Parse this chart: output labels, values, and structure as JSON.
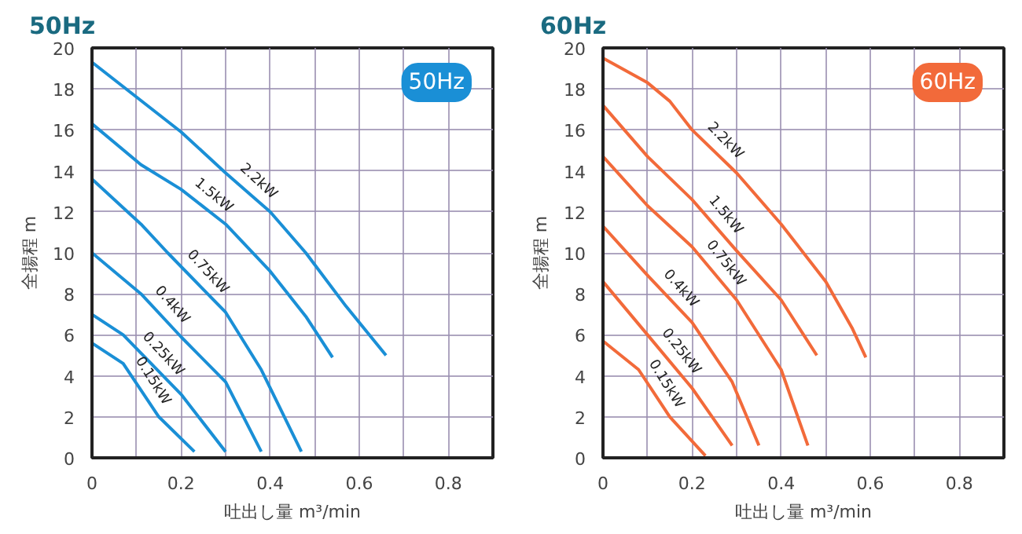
{
  "chart_data": [
    {
      "type": "line",
      "title": "50Hz",
      "xlabel": "吐出し量 m³/min",
      "ylabel": "全揚程 m",
      "annotations": [
        "50Hz"
      ],
      "xlim": [
        0,
        0.9
      ],
      "ylim": [
        0,
        20
      ],
      "xticks": [
        0,
        {
          "value": 0.1,
          "label": null
        },
        0.2,
        {
          "value": 0.3,
          "label": null
        },
        0.4,
        {
          "value": 0.5,
          "label": null
        },
        0.6,
        {
          "value": 0.7,
          "label": null
        },
        0.8,
        {
          "value": 0.9,
          "label": null
        }
      ],
      "yticks": [
        0,
        2,
        4,
        6,
        8,
        10,
        12,
        14,
        16,
        18,
        20
      ],
      "grid": true,
      "marker": "none",
      "line_style": "solid",
      "series": [
        {
          "name": "2.2kW",
          "color": "#1a8fd6",
          "x": [
            0,
            0.2,
            0.3,
            0.4,
            0.48,
            0.57,
            0.66
          ],
          "values": [
            19.3,
            15.9,
            13.9,
            12.0,
            10.0,
            7.4,
            5.0
          ]
        },
        {
          "name": "1.5kW",
          "color": "#1a8fd6",
          "x": [
            0,
            0.11,
            0.2,
            0.3,
            0.4,
            0.48,
            0.54
          ],
          "values": [
            16.3,
            14.3,
            13.1,
            11.4,
            9.1,
            6.9,
            4.9
          ]
        },
        {
          "name": "0.75kW",
          "color": "#1a8fd6",
          "x": [
            0,
            0.11,
            0.17,
            0.3,
            0.38,
            0.47
          ],
          "values": [
            13.6,
            11.4,
            10.0,
            7.1,
            4.3,
            0.3
          ]
        },
        {
          "name": "0.4kW",
          "color": "#1a8fd6",
          "x": [
            0,
            0.11,
            0.2,
            0.3,
            0.38
          ],
          "values": [
            10.0,
            8.0,
            5.9,
            3.7,
            0.3
          ]
        },
        {
          "name": "0.25kW",
          "color": "#1a8fd6",
          "x": [
            0,
            0.07,
            0.2,
            0.3
          ],
          "values": [
            7.0,
            6.0,
            3.1,
            0.3
          ]
        },
        {
          "name": "0.15kW",
          "color": "#1a8fd6",
          "x": [
            0,
            0.07,
            0.15,
            0.23
          ],
          "values": [
            5.6,
            4.6,
            2.0,
            0.3
          ]
        }
      ]
    },
    {
      "type": "line",
      "title": "60Hz",
      "xlabel": "吐出し量 m³/min",
      "ylabel": "全揚程 m",
      "annotations": [
        "60Hz"
      ],
      "xlim": [
        0,
        0.9
      ],
      "ylim": [
        0,
        20
      ],
      "xticks": [
        0,
        {
          "value": 0.1,
          "label": null
        },
        0.2,
        {
          "value": 0.3,
          "label": null
        },
        0.4,
        {
          "value": 0.5,
          "label": null
        },
        0.6,
        {
          "value": 0.7,
          "label": null
        },
        0.8,
        {
          "value": 0.9,
          "label": null
        }
      ],
      "yticks": [
        0,
        2,
        4,
        6,
        8,
        10,
        12,
        14,
        16,
        18,
        20
      ],
      "grid": true,
      "marker": "none",
      "line_style": "solid",
      "series": [
        {
          "name": "2.2kW",
          "color": "#f26a3a",
          "x": [
            0,
            0.1,
            0.15,
            0.2,
            0.3,
            0.4,
            0.5,
            0.56,
            0.59
          ],
          "values": [
            19.5,
            18.3,
            17.4,
            16.0,
            13.9,
            11.4,
            8.6,
            6.3,
            4.9
          ]
        },
        {
          "name": "1.5kW",
          "color": "#f26a3a",
          "x": [
            0,
            0.1,
            0.2,
            0.3,
            0.4,
            0.48
          ],
          "values": [
            17.2,
            14.7,
            12.6,
            10.1,
            7.7,
            5.0
          ]
        },
        {
          "name": "0.75kW",
          "color": "#f26a3a",
          "x": [
            0,
            0.1,
            0.2,
            0.3,
            0.4,
            0.46
          ],
          "values": [
            14.7,
            12.3,
            10.3,
            7.7,
            4.3,
            0.6
          ]
        },
        {
          "name": "0.4kW",
          "color": "#f26a3a",
          "x": [
            0,
            0.1,
            0.2,
            0.29,
            0.35
          ],
          "values": [
            11.3,
            8.9,
            6.6,
            3.7,
            0.6
          ]
        },
        {
          "name": "0.25kW",
          "color": "#f26a3a",
          "x": [
            0,
            0.1,
            0.2,
            0.29
          ],
          "values": [
            8.6,
            6.0,
            3.4,
            0.6
          ]
        },
        {
          "name": "0.15kW",
          "color": "#f26a3a",
          "x": [
            0,
            0.08,
            0.15,
            0.23
          ],
          "values": [
            5.7,
            4.3,
            2.0,
            0.1
          ]
        }
      ]
    }
  ]
}
